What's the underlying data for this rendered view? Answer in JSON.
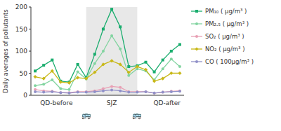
{
  "chart_data": {
    "type": "line",
    "y_label": "Daily averages of pollutants",
    "x": [
      0,
      1,
      2,
      3,
      4,
      5,
      6,
      7,
      8,
      9,
      10,
      11,
      12,
      13,
      14,
      15,
      16,
      17
    ],
    "xlim": [
      -0.5,
      17.5
    ],
    "ylim": [
      0,
      200
    ],
    "yticks": [
      0,
      50,
      100,
      150,
      200
    ],
    "grid": false,
    "legend": "right",
    "tick_labels": "y",
    "series": [
      {
        "name": "PM₁₀ ( μg/m³ )",
        "color": "#1aad6e",
        "marker": "square",
        "values": [
          55,
          68,
          80,
          32,
          30,
          70,
          40,
          93,
          150,
          195,
          155,
          65,
          67,
          75,
          53,
          80,
          100,
          115
        ]
      },
      {
        "name": "PM₂.₅ ( μg/m³ )",
        "color": "#82d4a0",
        "marker": "circle",
        "values": [
          22,
          25,
          35,
          15,
          13,
          53,
          37,
          72,
          100,
          135,
          105,
          45,
          60,
          55,
          35,
          60,
          82,
          65
        ]
      },
      {
        "name": "SO₂ ( μg/m³ )",
        "color": "#e8a0b4",
        "marker": "circle",
        "values": [
          13,
          10,
          9,
          6,
          6,
          8,
          8,
          10,
          15,
          20,
          18,
          8,
          8,
          8,
          5,
          7,
          9,
          10
        ]
      },
      {
        "name": "NO₂ ( μg/m³ )",
        "color": "#c8b818",
        "marker": "diamond",
        "values": [
          42,
          38,
          55,
          30,
          28,
          40,
          38,
          52,
          70,
          78,
          70,
          52,
          65,
          58,
          32,
          38,
          50,
          50
        ]
      },
      {
        "name": "CO ( 100μg/m³ )",
        "color": "#9090c8",
        "marker": "circle",
        "values": [
          8,
          7,
          8,
          6,
          5,
          7,
          7,
          8,
          10,
          12,
          10,
          7,
          7,
          8,
          5,
          7,
          8,
          9
        ]
      }
    ],
    "spans": [
      {
        "start": 6,
        "end": 12,
        "color": "#e8e8e8"
      }
    ],
    "annotations": [
      {
        "text": "QD-before",
        "x": 2.5
      },
      {
        "text": "SJZ",
        "x": 9.0
      },
      {
        "text": "QD-after",
        "x": 15.5
      },
      {
        "text": "🚌",
        "x": 6
      },
      {
        "text": "🚌",
        "x": 12
      }
    ]
  }
}
